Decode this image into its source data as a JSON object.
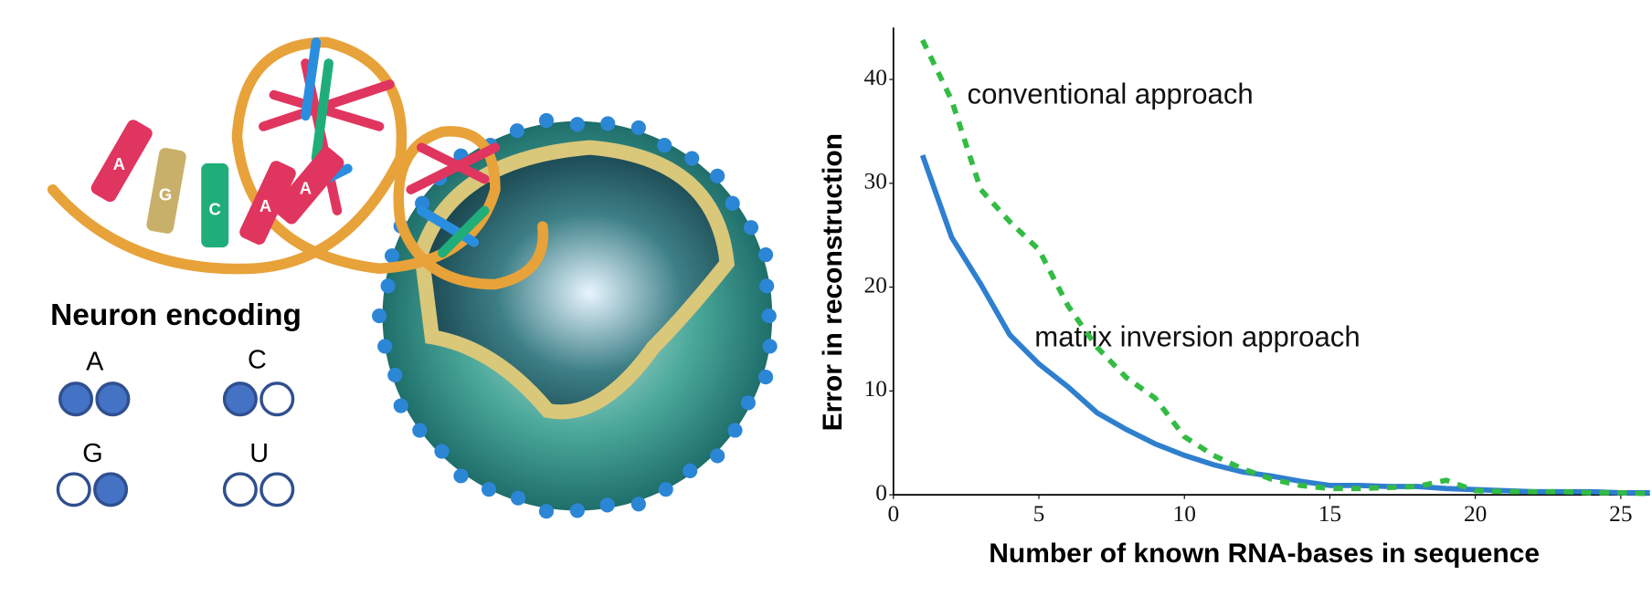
{
  "chart_data": {
    "type": "line",
    "xlabel": "Number of known RNA-bases in sequence",
    "ylabel": "Error in reconstruction",
    "x": [
      1,
      2,
      3,
      4,
      5,
      6,
      7,
      8,
      9,
      10,
      11,
      12,
      13,
      14,
      15,
      16,
      17,
      18,
      19,
      20,
      21,
      22,
      23,
      24,
      25,
      26
    ],
    "series": [
      {
        "name": "matrix inversion approach",
        "color": "#2f7fcf",
        "dashed": false,
        "values": [
          32.7,
          24.8,
          20.3,
          15.4,
          12.6,
          10.4,
          7.9,
          6.3,
          4.9,
          3.8,
          2.9,
          2.2,
          1.8,
          1.3,
          0.9,
          0.9,
          0.8,
          0.8,
          0.6,
          0.5,
          0.4,
          0.3,
          0.3,
          0.3,
          0.2,
          0.2
        ]
      },
      {
        "name": "conventional approach",
        "color": "#33bb44",
        "dashed": true,
        "values": [
          43.8,
          38,
          29.4,
          26.3,
          23.6,
          18.2,
          14.2,
          11.3,
          9.3,
          5.6,
          3.8,
          2.5,
          1.5,
          0.9,
          0.6,
          0.6,
          0.7,
          0.8,
          1.4,
          0.4,
          0.3,
          0.3,
          0.3,
          0.2,
          0.2,
          0.1
        ]
      }
    ],
    "xlim": [
      0,
      26
    ],
    "ylim": [
      0,
      45
    ],
    "xticks": [
      0,
      5,
      10,
      15,
      20,
      25
    ],
    "yticks": [
      0,
      10,
      20,
      30,
      40
    ],
    "grid": false
  },
  "helix_labels": [
    "A",
    "G",
    "C",
    "A",
    "A"
  ],
  "neuron_encoding": {
    "title": "Neuron encoding",
    "items": [
      {
        "label": "A",
        "bits": [
          1,
          1
        ]
      },
      {
        "label": "C",
        "bits": [
          1,
          0
        ]
      },
      {
        "label": "G",
        "bits": [
          0,
          1
        ]
      },
      {
        "label": "U",
        "bits": [
          0,
          0
        ]
      }
    ]
  }
}
